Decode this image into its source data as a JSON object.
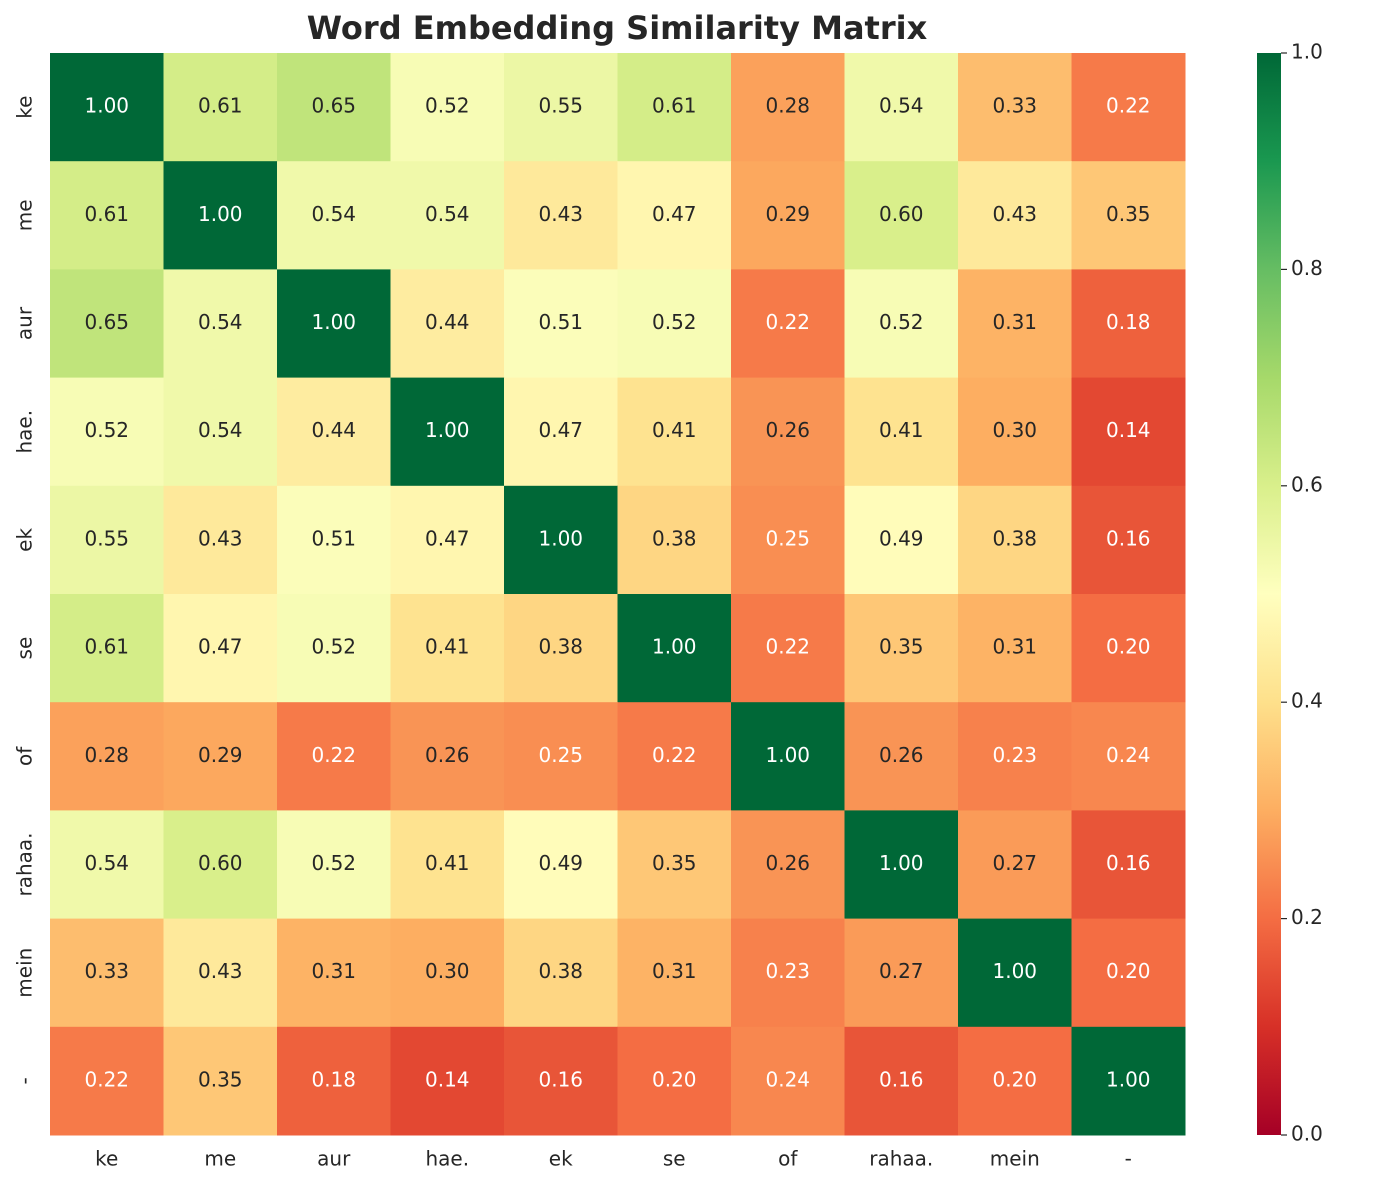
{
  "chart_data": {
    "type": "heatmap",
    "title": "Word Embedding Similarity Matrix",
    "categories": [
      "ke",
      "me",
      "aur",
      "hae.",
      "ek",
      "se",
      "of",
      "rahaa.",
      "mein",
      "-"
    ],
    "y_categories": [
      "ke",
      "me",
      "aur",
      "hae.",
      "ek",
      "se",
      "of",
      "rahaa.",
      "mein",
      "-"
    ],
    "values": [
      [
        1,
        0.61,
        0.65,
        0.52,
        0.55,
        0.61,
        0.28,
        0.54,
        0.33,
        0.22
      ],
      [
        0.61,
        1,
        0.54,
        0.54,
        0.43,
        0.47,
        0.29,
        0.6,
        0.43,
        0.35
      ],
      [
        0.65,
        0.54,
        1,
        0.44,
        0.51,
        0.52,
        0.22,
        0.52,
        0.31,
        0.18
      ],
      [
        0.52,
        0.54,
        0.44,
        1,
        0.47,
        0.41,
        0.26,
        0.41,
        0.3,
        0.14
      ],
      [
        0.55,
        0.43,
        0.51,
        0.47,
        1,
        0.38,
        0.25,
        0.49,
        0.38,
        0.16
      ],
      [
        0.61,
        0.47,
        0.52,
        0.41,
        0.38,
        1,
        0.22,
        0.35,
        0.31,
        0.2
      ],
      [
        0.28,
        0.29,
        0.22,
        0.26,
        0.25,
        0.22,
        1,
        0.26,
        0.23,
        0.24
      ],
      [
        0.54,
        0.6,
        0.52,
        0.41,
        0.49,
        0.35,
        0.26,
        1,
        0.27,
        0.16
      ],
      [
        0.33,
        0.43,
        0.31,
        0.3,
        0.38,
        0.31,
        0.23,
        0.27,
        1,
        0.2
      ],
      [
        0.22,
        0.35,
        0.18,
        0.14,
        0.16,
        0.2,
        0.24,
        0.16,
        0.2,
        1
      ]
    ],
    "value_labels": [
      [
        "1.00",
        "0.61",
        "0.65",
        "0.52",
        "0.55",
        "0.61",
        "0.28",
        "0.54",
        "0.33",
        "0.22"
      ],
      [
        "0.61",
        "1.00",
        "0.54",
        "0.54",
        "0.43",
        "0.47",
        "0.29",
        "0.60",
        "0.43",
        "0.35"
      ],
      [
        "0.65",
        "0.54",
        "1.00",
        "0.44",
        "0.51",
        "0.52",
        "0.22",
        "0.52",
        "0.31",
        "0.18"
      ],
      [
        "0.52",
        "0.54",
        "0.44",
        "1.00",
        "0.47",
        "0.41",
        "0.26",
        "0.41",
        "0.30",
        "0.14"
      ],
      [
        "0.55",
        "0.43",
        "0.51",
        "0.47",
        "1.00",
        "0.38",
        "0.25",
        "0.49",
        "0.38",
        "0.16"
      ],
      [
        "0.61",
        "0.47",
        "0.52",
        "0.41",
        "0.38",
        "1.00",
        "0.22",
        "0.35",
        "0.31",
        "0.20"
      ],
      [
        "0.28",
        "0.29",
        "0.22",
        "0.26",
        "0.25",
        "0.22",
        "1.00",
        "0.26",
        "0.23",
        "0.24"
      ],
      [
        "0.54",
        "0.60",
        "0.52",
        "0.41",
        "0.49",
        "0.35",
        "0.26",
        "1.00",
        "0.27",
        "0.16"
      ],
      [
        "0.33",
        "0.43",
        "0.31",
        "0.30",
        "0.38",
        "0.31",
        "0.23",
        "0.27",
        "1.00",
        "0.20"
      ],
      [
        "0.22",
        "0.35",
        "0.18",
        "0.14",
        "0.16",
        "0.20",
        "0.24",
        "0.16",
        "0.20",
        "1.00"
      ]
    ],
    "clim": [
      0,
      1
    ],
    "cticks": [
      {
        "value": 0,
        "label": "0.0"
      },
      0.2,
      0.4,
      0.6,
      0.8,
      {
        "value": 1,
        "label": "1.0"
      }
    ],
    "colormap": [
      "#a50026",
      "#d73027",
      "#f46d43",
      "#fdae61",
      "#fee08b",
      "#ffffbf",
      "#d9ef8b",
      "#a6d96a",
      "#66bd63",
      "#1a9850",
      "#006837"
    ]
  }
}
